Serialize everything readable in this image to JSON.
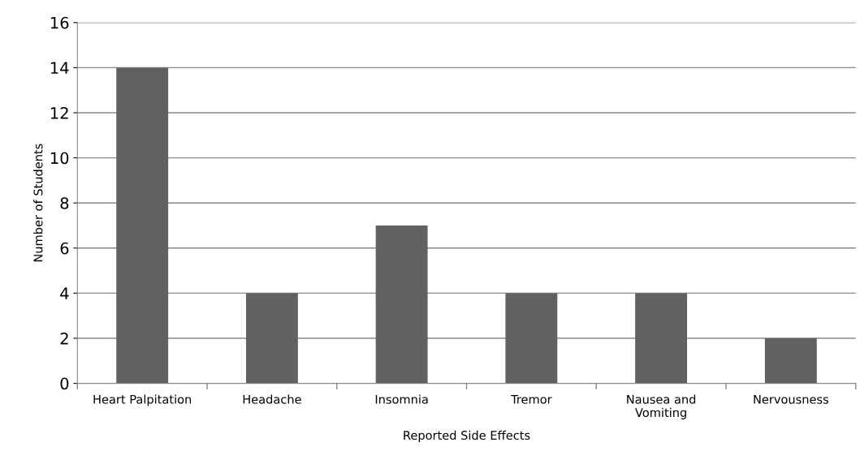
{
  "chart_data": {
    "type": "bar",
    "xlabel": "Reported Side Effects",
    "ylabel": "Number of Students",
    "categories": [
      "Heart Palpitation",
      "Headache",
      "Insomnia",
      "Tremor",
      "Nausea and\nVomiting",
      "Nervousness"
    ],
    "values": [
      14,
      4,
      7,
      4,
      4,
      2
    ],
    "color": "#616161",
    "ylim": [
      0,
      16
    ],
    "yticks": [
      0,
      2,
      4,
      6,
      8,
      10,
      12,
      14,
      16
    ],
    "grid": "y",
    "legend": false
  }
}
